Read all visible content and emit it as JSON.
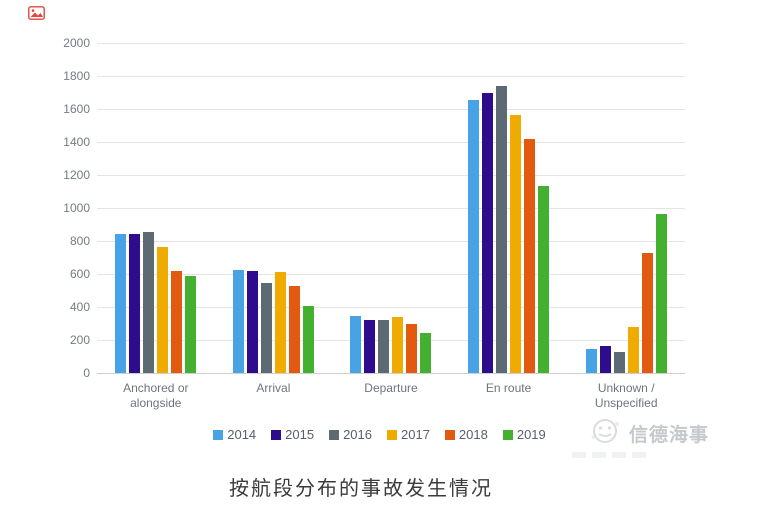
{
  "page": {
    "background": "#ffffff",
    "placeholder_icon": "broken-image-icon",
    "placeholder_icon_color": "#e0463a"
  },
  "chart_data": {
    "type": "bar",
    "title": "",
    "xlabel": "",
    "ylabel": "",
    "ylim": [
      0,
      2000
    ],
    "ytick_step": 200,
    "yticks": [
      0,
      200,
      400,
      600,
      800,
      1000,
      1200,
      1400,
      1600,
      1800,
      2000
    ],
    "grid": true,
    "legend_position": "bottom",
    "categories": [
      "Anchored or alongside",
      "Arrival",
      "Departure",
      "En route",
      "Unknown / Unspecified"
    ],
    "category_lines": [
      [
        "Anchored or",
        "alongside"
      ],
      [
        "Arrival"
      ],
      [
        "Departure"
      ],
      [
        "En route"
      ],
      [
        "Unknown /",
        "Unspecified"
      ]
    ],
    "series": [
      {
        "name": "2014",
        "color": "#47a3e6",
        "values": [
          840,
          625,
          345,
          1655,
          145
        ]
      },
      {
        "name": "2015",
        "color": "#2d0c8d",
        "values": [
          845,
          620,
          320,
          1700,
          165
        ]
      },
      {
        "name": "2016",
        "color": "#5e6a73",
        "values": [
          855,
          545,
          320,
          1740,
          125
        ]
      },
      {
        "name": "2017",
        "color": "#efab00",
        "values": [
          765,
          615,
          340,
          1565,
          280
        ]
      },
      {
        "name": "2018",
        "color": "#e25a10",
        "values": [
          620,
          530,
          300,
          1420,
          730
        ]
      },
      {
        "name": "2019",
        "color": "#43b02f",
        "values": [
          590,
          405,
          240,
          1135,
          965
        ]
      }
    ],
    "colors": {
      "gridline": "#e4e4e4",
      "axis_line": "#cfcfcf",
      "tick_text": "#757b82",
      "category_text": "#6f747c",
      "legend_text": "#5a6069"
    }
  },
  "watermark": {
    "logo_icon": "compass-logo-icon",
    "text": "信德海事",
    "color": "#bcc0c5"
  },
  "caption": {
    "text": "按航段分布的事故发生情况",
    "color": "#3b3b3b"
  }
}
